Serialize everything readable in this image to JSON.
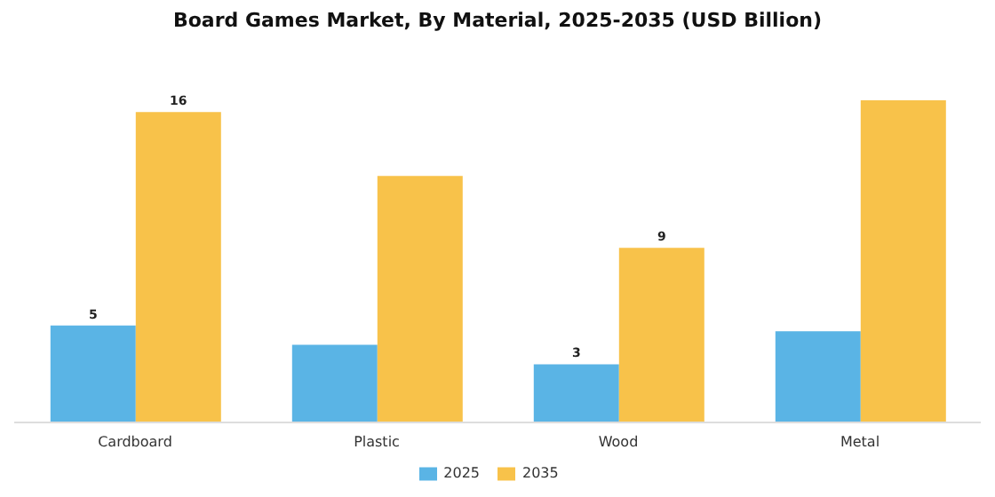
{
  "chart_data": {
    "type": "bar",
    "title": "Board Games Market, By Material, 2025-2035 (USD Billion)",
    "categories": [
      "Cardboard",
      "Plastic",
      "Wood",
      "Metal"
    ],
    "series": [
      {
        "name": "2025",
        "color": "#5ab4e5",
        "values": [
          5,
          4,
          3,
          4.7
        ],
        "value_labels": [
          "5",
          null,
          "3",
          null
        ]
      },
      {
        "name": "2035",
        "color": "#f8c24a",
        "values": [
          16,
          12.7,
          9,
          16.6
        ],
        "value_labels": [
          "16",
          null,
          "9",
          null
        ]
      }
    ],
    "legend": "bottom",
    "grid": false
  }
}
